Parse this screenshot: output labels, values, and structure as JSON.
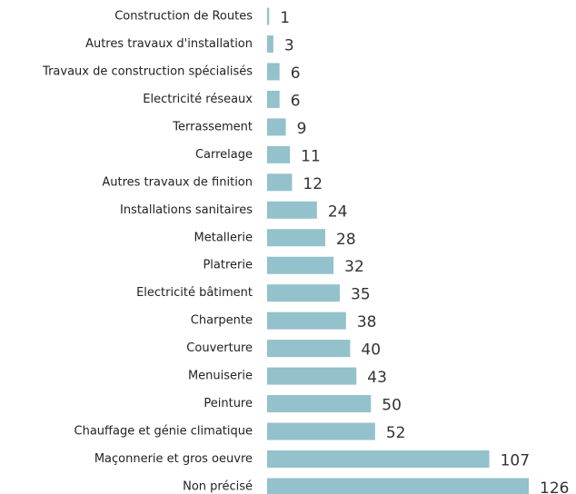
{
  "chart_data": {
    "type": "bar",
    "orientation": "horizontal",
    "categories": [
      "Construction de Routes",
      "Autres travaux d'installation",
      "Travaux de construction spécialisés",
      "Electricité réseaux",
      "Terrassement",
      "Carrelage",
      "Autres travaux de finition",
      "Installations sanitaires",
      "Metallerie",
      "Platrerie",
      "Electricité bâtiment",
      "Charpente",
      "Couverture",
      "Menuiserie",
      "Peinture",
      "Chauffage et génie climatique",
      "Maçonnerie et gros oeuvre",
      "Non précisé"
    ],
    "values": [
      1,
      3,
      6,
      6,
      9,
      11,
      12,
      24,
      28,
      32,
      35,
      38,
      40,
      43,
      50,
      52,
      107,
      126
    ],
    "color": "#93c1cc"
  }
}
